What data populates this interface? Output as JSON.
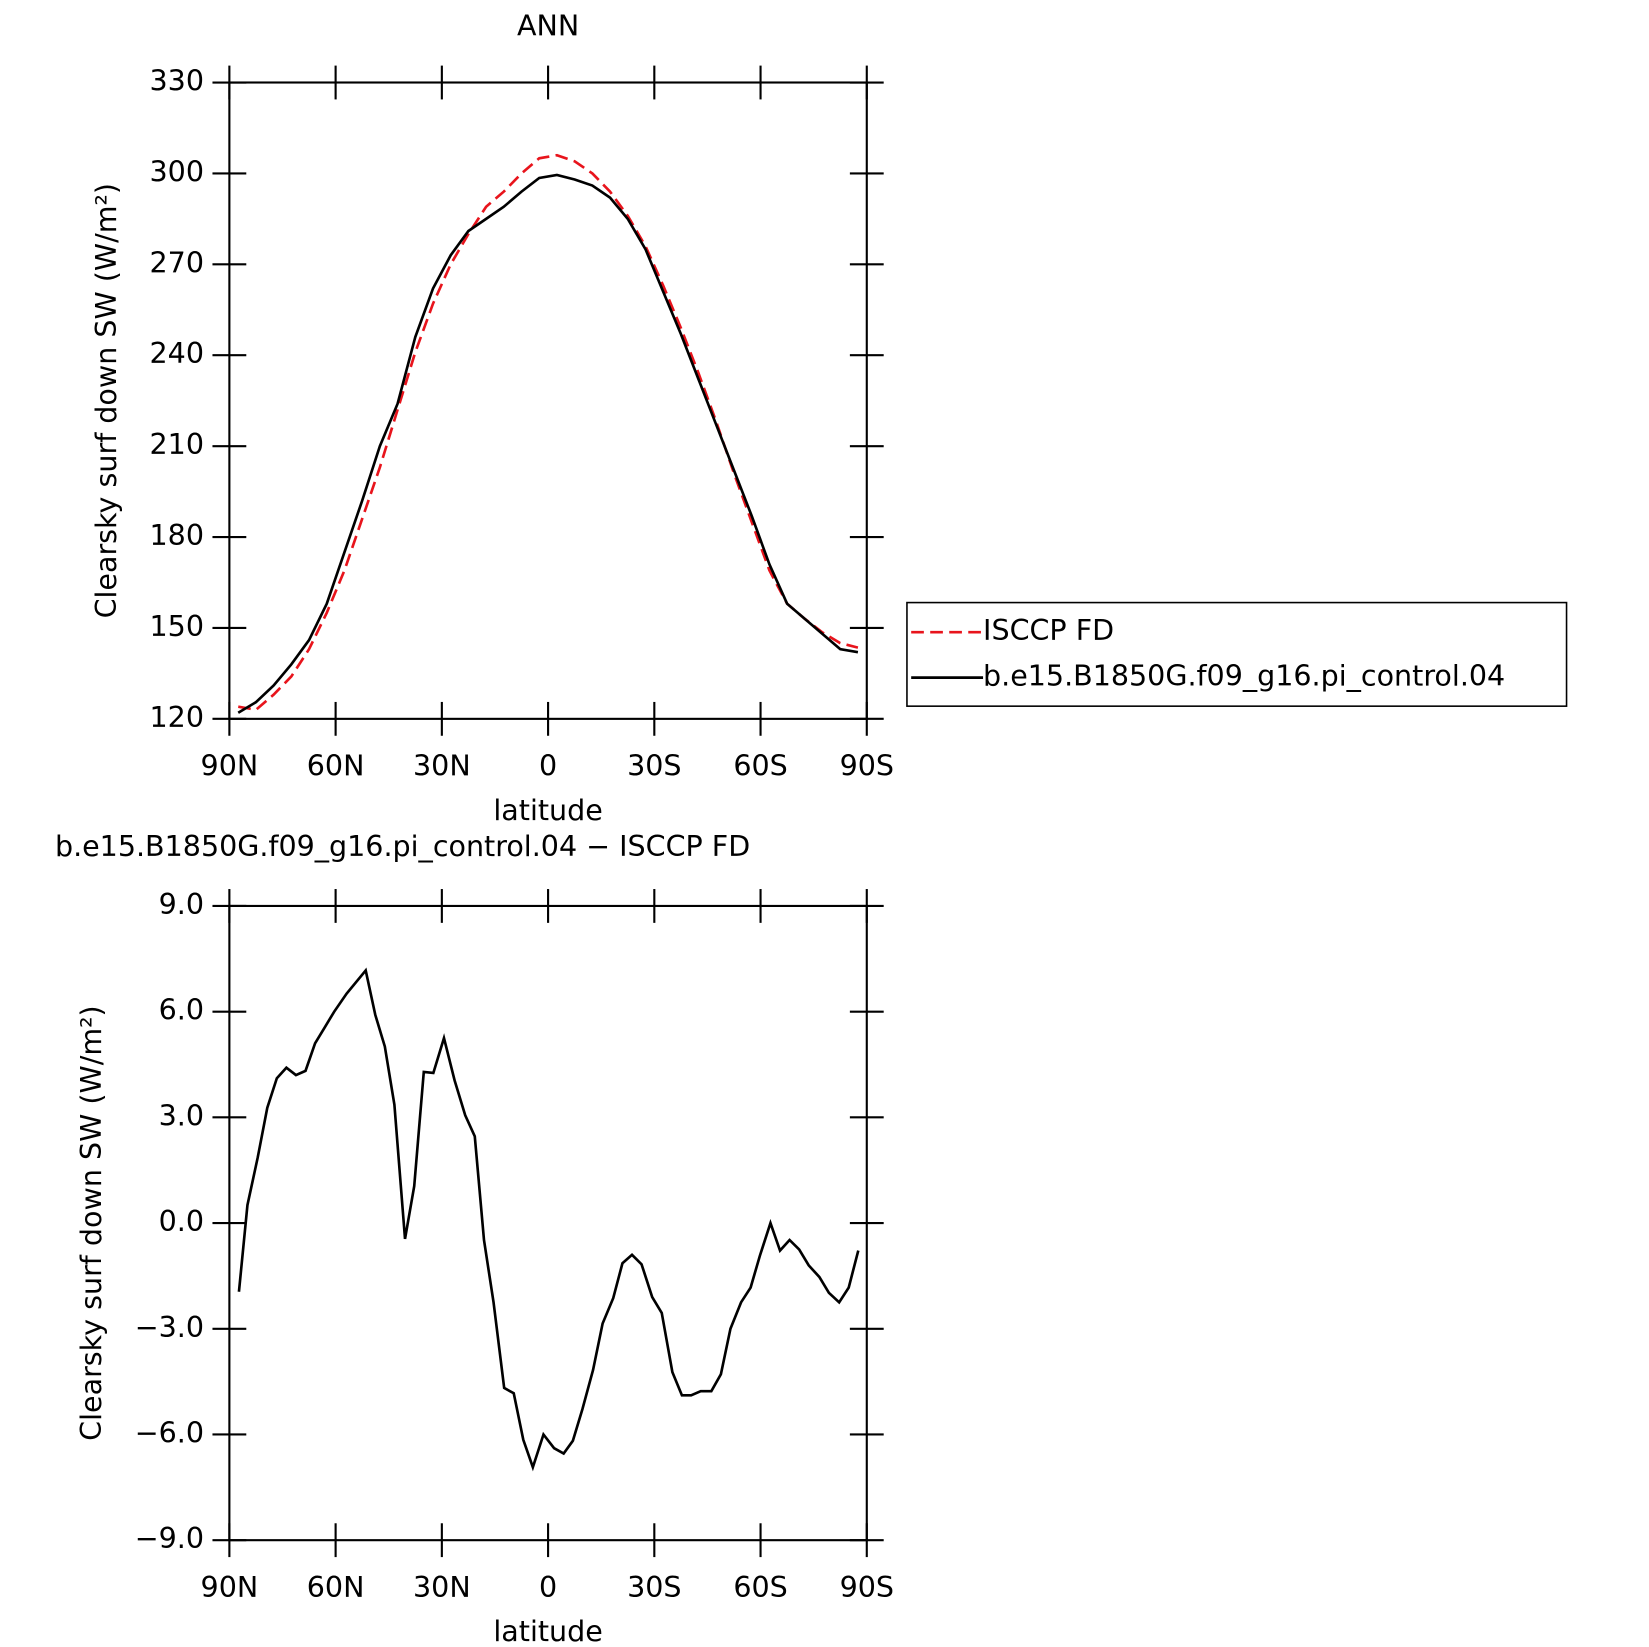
{
  "chart_data": [
    {
      "type": "line",
      "title": "ANN",
      "xlabel": "latitude",
      "ylabel": "Clearsky surf down SW (W/m²)",
      "x": [
        87.5,
        82.5,
        77.5,
        72.5,
        67.5,
        62.5,
        57.5,
        52.5,
        47.5,
        42.5,
        37.5,
        32.5,
        27.5,
        22.5,
        17.5,
        12.5,
        7.5,
        2.5,
        -2.5,
        -7.5,
        -12.5,
        -17.5,
        -22.5,
        -27.5,
        -32.5,
        -37.5,
        -42.5,
        -47.5,
        -52.5,
        -57.5,
        -62.5,
        -67.5,
        -72.5,
        -77.5,
        -82.5,
        -87.5
      ],
      "series": [
        {
          "name": "ISCCP FD",
          "color": "#e8141c",
          "linestyle": "dashed",
          "values": [
            124,
            123,
            128,
            134,
            143,
            155,
            169,
            186,
            203,
            222,
            241,
            257,
            270,
            280,
            289,
            294,
            300,
            305,
            306,
            304,
            300,
            294,
            286,
            276,
            263,
            249,
            234,
            218,
            201,
            185,
            169,
            158,
            153,
            148.5,
            145,
            143.5
          ]
        },
        {
          "name": "b.e15.B1850G.f09_g16.pi_control.04",
          "color": "#000000",
          "linestyle": "solid",
          "values": [
            122,
            125.5,
            131,
            138,
            146,
            158,
            175,
            192,
            210,
            224,
            246,
            262,
            273,
            281,
            285,
            289,
            294,
            298.5,
            299.5,
            298,
            296,
            292,
            285,
            275,
            261,
            247,
            232,
            217,
            202,
            187,
            171,
            158,
            153,
            148,
            143,
            142
          ]
        }
      ],
      "xlim": [
        90,
        -90
      ],
      "xticks": [
        {
          "value": 90,
          "label": "90N"
        },
        {
          "value": 60,
          "label": "60N"
        },
        {
          "value": 30,
          "label": "30N"
        },
        0,
        {
          "value": -30,
          "label": "30S"
        },
        {
          "value": -60,
          "label": "60S"
        },
        {
          "value": -90,
          "label": "90S"
        }
      ],
      "ylim": [
        120,
        330
      ],
      "yticks": [
        120,
        150,
        180,
        210,
        240,
        270,
        300,
        330
      ],
      "legend": "right"
    },
    {
      "type": "line",
      "title": "b.e15.B1850G.f09_g16.pi_control.04 − ISCCP FD",
      "xlabel": "latitude",
      "ylabel": "Clearsky surf down SW (W/m²)",
      "x": [
        87.3,
        84.9,
        82.0,
        79.3,
        76.6,
        73.9,
        71.2,
        68.5,
        65.8,
        63.1,
        60.4,
        56.9,
        51.5,
        48.8,
        46.1,
        43.4,
        40.4,
        37.8,
        35.1,
        32.4,
        29.4,
        26.4,
        23.4,
        20.7,
        18.1,
        15.4,
        12.4,
        9.7,
        7.0,
        4.3,
        1.3,
        -1.7,
        -4.4,
        -7.0,
        -9.7,
        -12.7,
        -15.4,
        -18.4,
        -21.0,
        -23.7,
        -26.4,
        -29.4,
        -32.1,
        -35.1,
        -37.8,
        -40.4,
        -43.1,
        -46.1,
        -48.8,
        -51.5,
        -54.5,
        -57.2,
        -59.8,
        -62.8,
        -65.5,
        -68.2,
        -70.9,
        -73.6,
        -76.6,
        -79.3,
        -82.2,
        -84.9,
        -87.6
      ],
      "series": [
        {
          "name": "b.e15.B1850G.f09_g16.pi_control.04 − ISCCP FD",
          "color": "#000000",
          "linestyle": "solid",
          "values": [
            -1.95,
            0.51,
            1.86,
            3.27,
            4.11,
            4.41,
            4.2,
            4.32,
            5.1,
            5.55,
            6.0,
            6.51,
            7.17,
            5.91,
            5.01,
            3.36,
            -0.45,
            1.05,
            4.29,
            4.26,
            5.25,
            4.05,
            3.06,
            2.46,
            -0.48,
            -2.25,
            -4.68,
            -4.83,
            -6.15,
            -6.93,
            -6.0,
            -6.39,
            -6.54,
            -6.18,
            -5.28,
            -4.17,
            -2.85,
            -2.13,
            -1.14,
            -0.9,
            -1.17,
            -2.1,
            -2.55,
            -4.23,
            -4.89,
            -4.89,
            -4.77,
            -4.77,
            -4.29,
            -3.0,
            -2.25,
            -1.83,
            -0.93,
            0.0,
            -0.78,
            -0.48,
            -0.75,
            -1.2,
            -1.53,
            -1.98,
            -2.25,
            -1.83,
            -0.78
          ]
        }
      ],
      "xlim": [
        90,
        -90
      ],
      "xticks": [
        {
          "value": 90,
          "label": "90N"
        },
        {
          "value": 60,
          "label": "60N"
        },
        {
          "value": 30,
          "label": "30N"
        },
        0,
        {
          "value": -30,
          "label": "30S"
        },
        {
          "value": -60,
          "label": "60S"
        },
        {
          "value": -90,
          "label": "90S"
        }
      ],
      "ylim": [
        -9,
        9
      ],
      "yticks": [
        {
          "value": -9,
          "label": "−9.0"
        },
        {
          "value": -6,
          "label": "−6.0"
        },
        {
          "value": -3,
          "label": "−3.0"
        },
        {
          "value": 0,
          "label": "0.0"
        },
        {
          "value": 3,
          "label": "3.0"
        },
        {
          "value": 6,
          "label": "6.0"
        },
        {
          "value": 9,
          "label": "9.0"
        }
      ]
    }
  ]
}
